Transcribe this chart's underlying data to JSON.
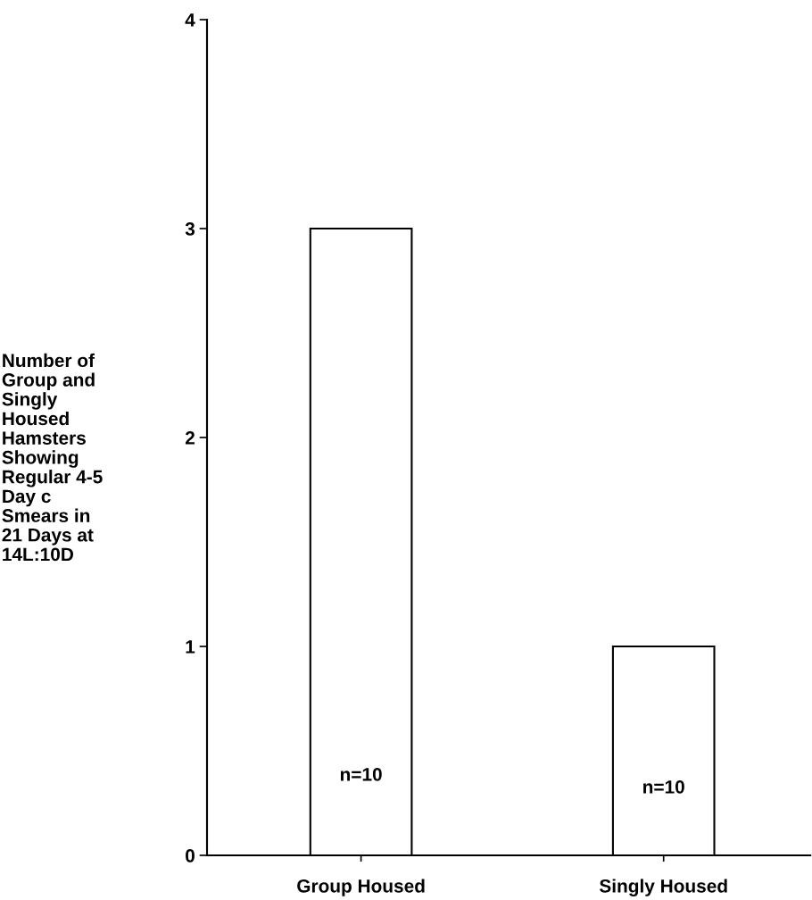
{
  "chart_data": {
    "type": "bar",
    "ylabel": "Number of\nGroup and\nSingly\nHoused\nHamsters\nShowing\nRegular 4-5\nDay c\nSmears in\n21 Days at\n14L:10D",
    "categories": [
      "Group Housed",
      "Singly Housed"
    ],
    "values": [
      3,
      1
    ],
    "color": "#ffffff",
    "ylim": [
      0,
      4
    ],
    "yticks": [
      0,
      1,
      2,
      3,
      4
    ],
    "grid": false,
    "legend": false,
    "annotations": [
      "n=10",
      "n=10"
    ]
  }
}
